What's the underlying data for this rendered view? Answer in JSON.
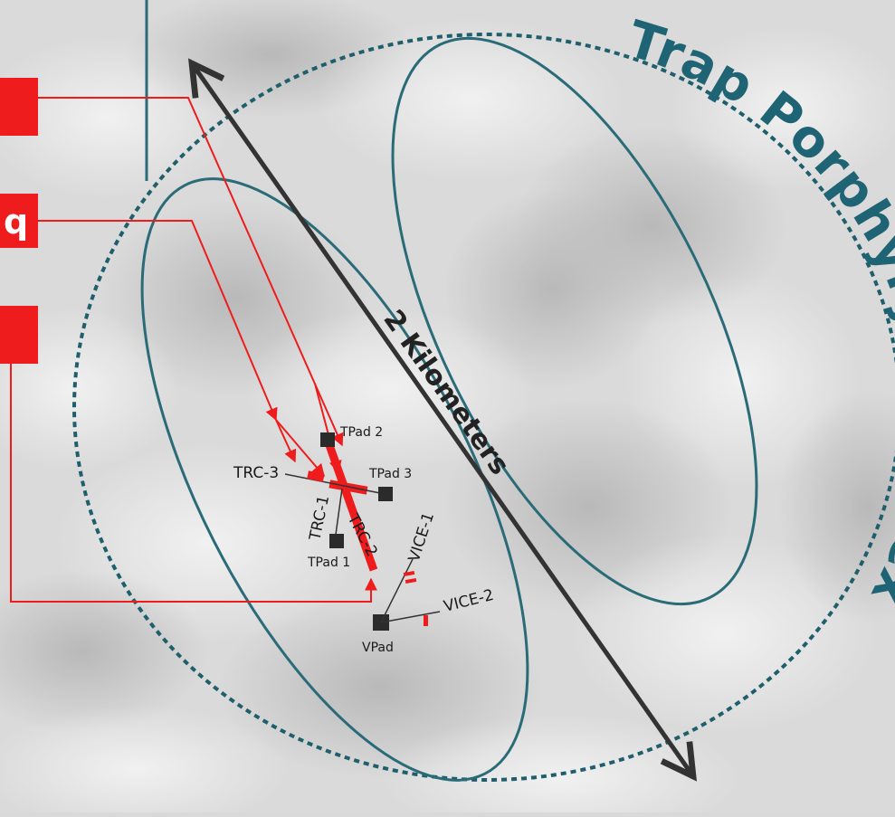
{
  "title": "Trap Porphyry Complex",
  "scale_label": "2 Kilometers",
  "left_labels": [
    "q"
  ],
  "drillholes": [
    "TRC-1",
    "TRC-2",
    "TRC-3",
    "VICE-1",
    "VICE-2"
  ],
  "pads": [
    "TPad 1",
    "TPad 2",
    "TPad 3",
    "VPad"
  ],
  "colors": {
    "outline": "#2a6b78",
    "boundary": "#1f5f6c",
    "highlight": "#ee1c1c",
    "arrow": "#333333",
    "pad": "#2b2b2b",
    "background": "#d9d9d9"
  },
  "icons": [
    "pad-square-icon",
    "drill-trace-icon",
    "double-arrow-icon"
  ]
}
